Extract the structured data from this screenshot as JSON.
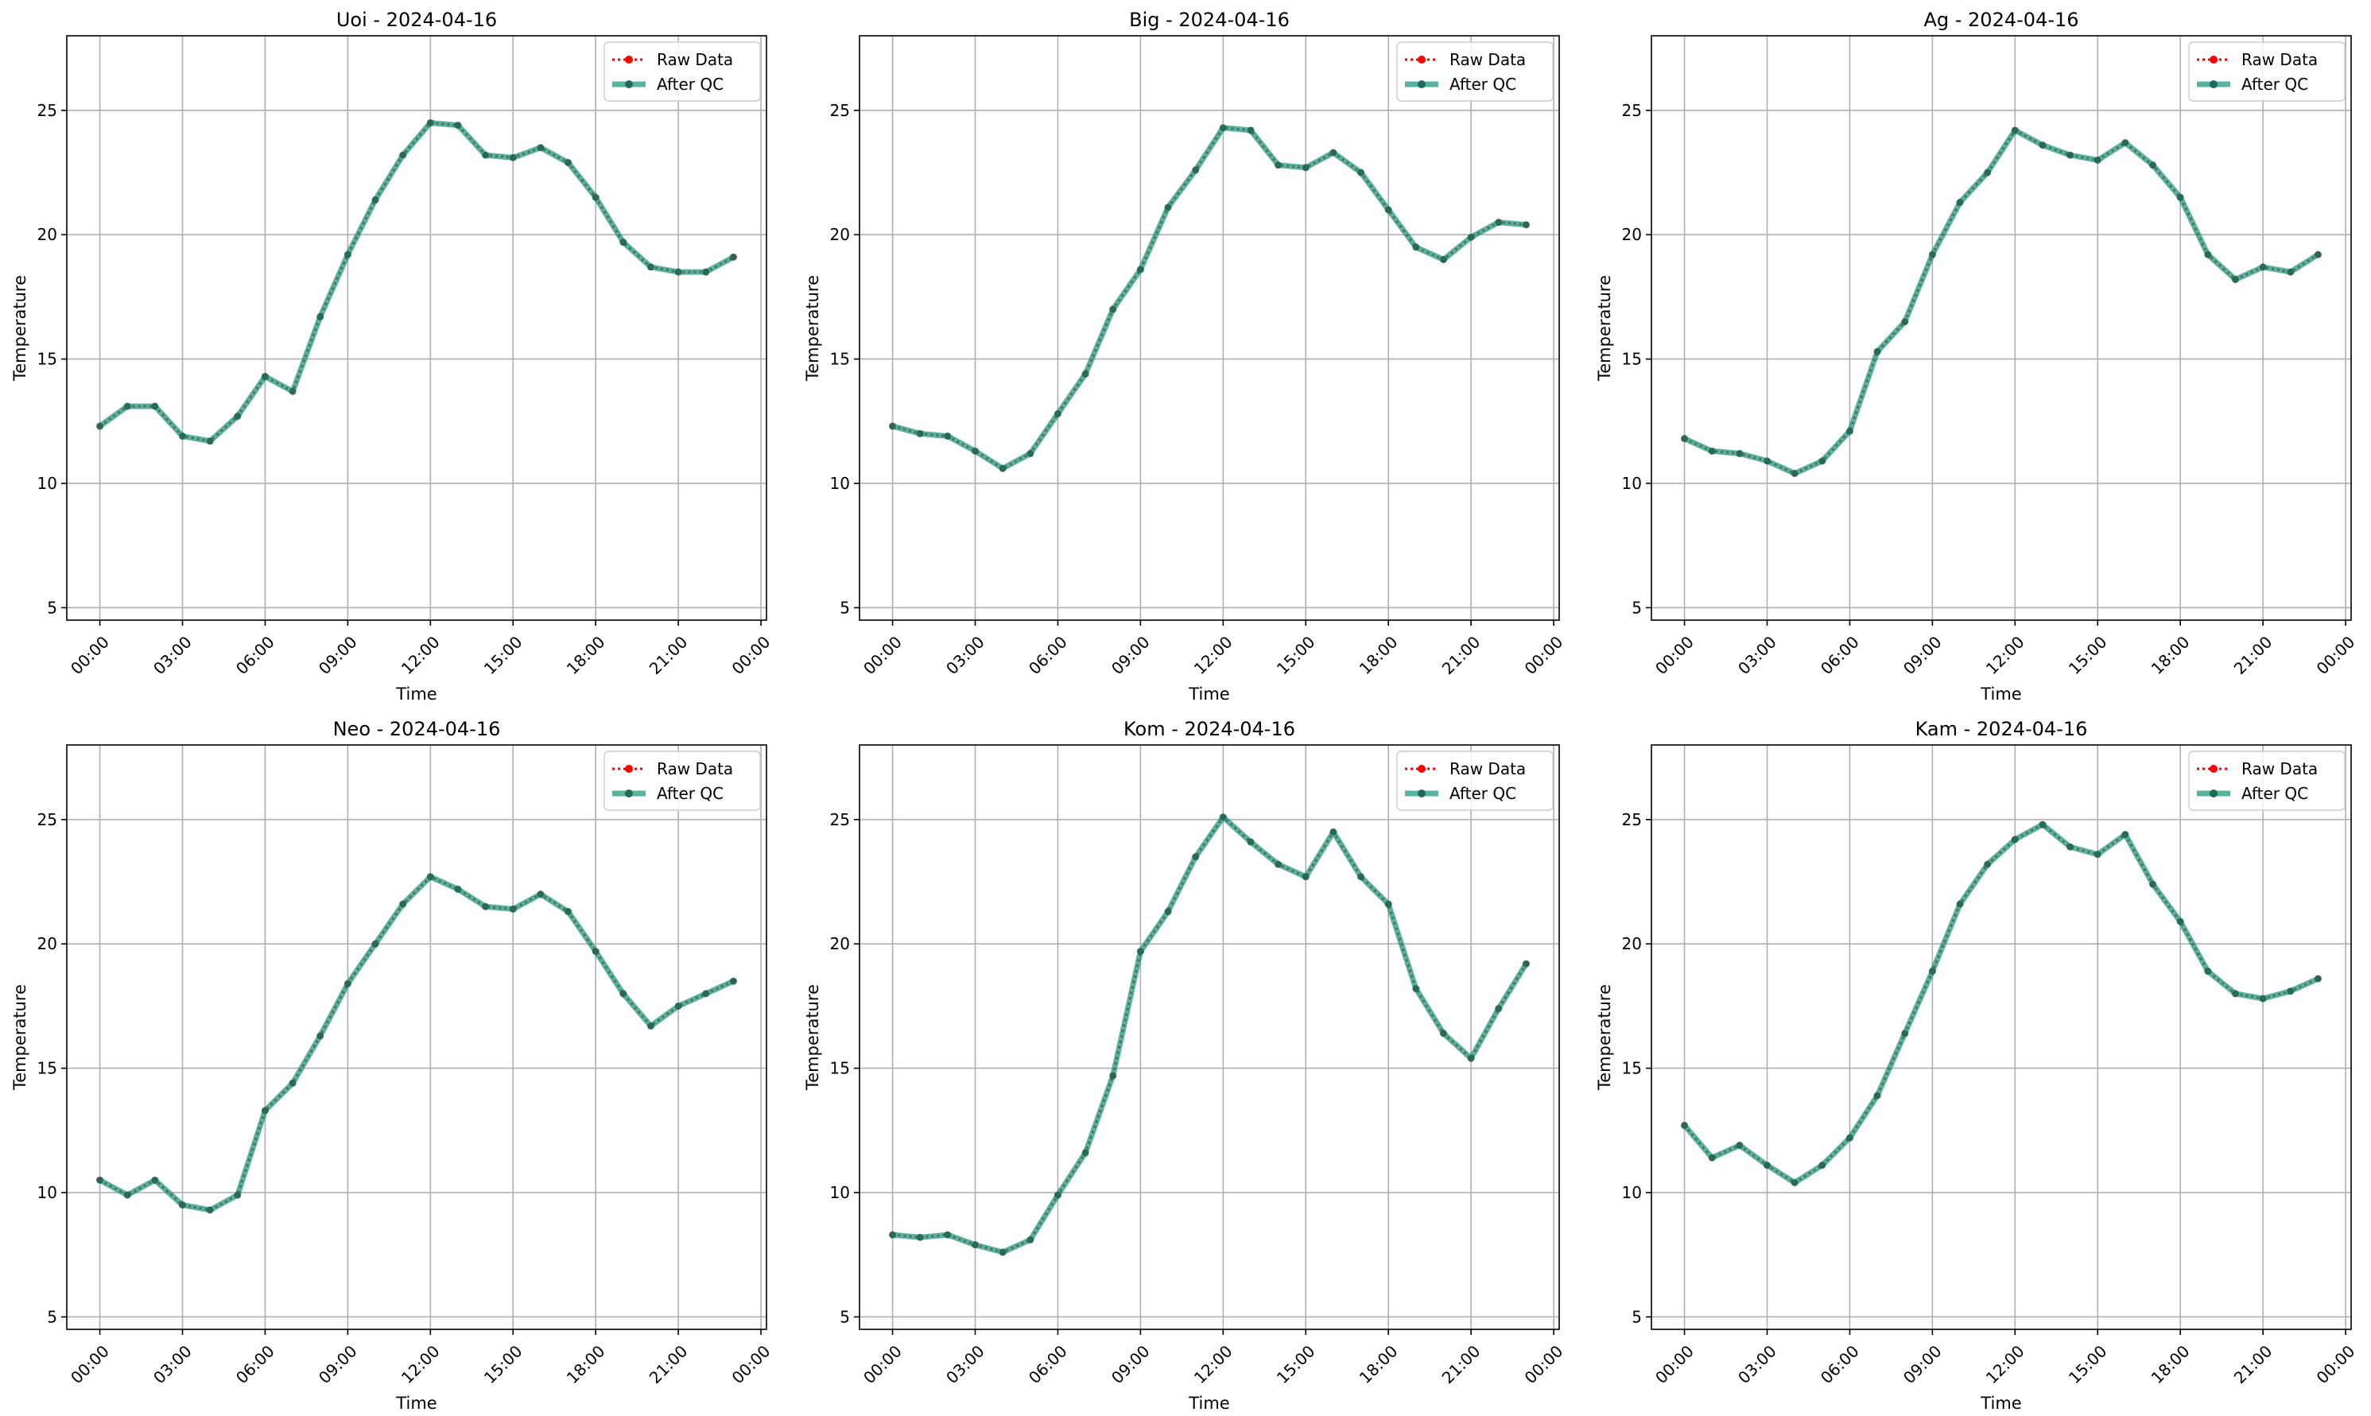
{
  "chart_data": [
    {
      "type": "line",
      "title": "Uoi - 2024-04-16",
      "xlabel": "Time",
      "ylabel": "Temperature",
      "x": [
        "00:00",
        "01:00",
        "02:00",
        "03:00",
        "04:00",
        "05:00",
        "06:00",
        "07:00",
        "08:00",
        "09:00",
        "10:00",
        "11:00",
        "12:00",
        "13:00",
        "14:00",
        "15:00",
        "16:00",
        "17:00",
        "18:00",
        "19:00",
        "20:00",
        "21:00",
        "22:00",
        "23:00"
      ],
      "xticks": [
        "00:00",
        "03:00",
        "06:00",
        "09:00",
        "12:00",
        "15:00",
        "18:00",
        "21:00",
        "00:00"
      ],
      "yticks": [
        5,
        10,
        15,
        20,
        25
      ],
      "ylim": [
        4.5,
        28
      ],
      "grid": true,
      "legend": "upper right",
      "series": [
        {
          "name": "Raw Data",
          "style": "dotted",
          "color": "#ff0000",
          "values": [
            12.3,
            13.1,
            13.1,
            11.9,
            11.7,
            12.7,
            14.3,
            13.7,
            16.7,
            19.2,
            21.4,
            23.2,
            24.5,
            24.4,
            23.2,
            23.1,
            23.5,
            22.9,
            21.5,
            19.7,
            18.7,
            18.5,
            18.5,
            19.1
          ]
        },
        {
          "name": "After QC",
          "style": "solid",
          "color": "#16967a",
          "values": [
            12.3,
            13.1,
            13.1,
            11.9,
            11.7,
            12.7,
            14.3,
            13.7,
            16.7,
            19.2,
            21.4,
            23.2,
            24.5,
            24.4,
            23.2,
            23.1,
            23.5,
            22.9,
            21.5,
            19.7,
            18.7,
            18.5,
            18.5,
            19.1
          ]
        }
      ]
    },
    {
      "type": "line",
      "title": "Big - 2024-04-16",
      "xlabel": "Time",
      "ylabel": "Temperature",
      "x": [
        "00:00",
        "01:00",
        "02:00",
        "03:00",
        "04:00",
        "05:00",
        "06:00",
        "07:00",
        "08:00",
        "09:00",
        "10:00",
        "11:00",
        "12:00",
        "13:00",
        "14:00",
        "15:00",
        "16:00",
        "17:00",
        "18:00",
        "19:00",
        "20:00",
        "21:00",
        "22:00",
        "23:00"
      ],
      "xticks": [
        "00:00",
        "03:00",
        "06:00",
        "09:00",
        "12:00",
        "15:00",
        "18:00",
        "21:00",
        "00:00"
      ],
      "yticks": [
        5,
        10,
        15,
        20,
        25
      ],
      "ylim": [
        4.5,
        28
      ],
      "grid": true,
      "legend": "upper right",
      "series": [
        {
          "name": "Raw Data",
          "style": "dotted",
          "color": "#ff0000",
          "values": [
            12.3,
            12.0,
            11.9,
            11.3,
            10.6,
            11.2,
            12.8,
            14.4,
            17.0,
            18.6,
            21.1,
            22.6,
            24.3,
            24.2,
            22.8,
            22.7,
            23.3,
            22.5,
            21.0,
            19.5,
            19.0,
            19.9,
            20.5,
            20.4
          ]
        },
        {
          "name": "After QC",
          "style": "solid",
          "color": "#16967a",
          "values": [
            12.3,
            12.0,
            11.9,
            11.3,
            10.6,
            11.2,
            12.8,
            14.4,
            17.0,
            18.6,
            21.1,
            22.6,
            24.3,
            24.2,
            22.8,
            22.7,
            23.3,
            22.5,
            21.0,
            19.5,
            19.0,
            19.9,
            20.5,
            20.4
          ]
        }
      ]
    },
    {
      "type": "line",
      "title": "Ag - 2024-04-16",
      "xlabel": "Time",
      "ylabel": "Temperature",
      "x": [
        "00:00",
        "01:00",
        "02:00",
        "03:00",
        "04:00",
        "05:00",
        "06:00",
        "07:00",
        "08:00",
        "09:00",
        "10:00",
        "11:00",
        "12:00",
        "13:00",
        "14:00",
        "15:00",
        "16:00",
        "17:00",
        "18:00",
        "19:00",
        "20:00",
        "21:00",
        "22:00",
        "23:00"
      ],
      "xticks": [
        "00:00",
        "03:00",
        "06:00",
        "09:00",
        "12:00",
        "15:00",
        "18:00",
        "21:00",
        "00:00"
      ],
      "yticks": [
        5,
        10,
        15,
        20,
        25
      ],
      "ylim": [
        4.5,
        28
      ],
      "grid": true,
      "legend": "upper right",
      "series": [
        {
          "name": "Raw Data",
          "style": "dotted",
          "color": "#ff0000",
          "values": [
            11.8,
            11.3,
            11.2,
            10.9,
            10.4,
            10.9,
            12.1,
            15.3,
            16.5,
            19.2,
            21.3,
            22.5,
            24.2,
            23.6,
            23.2,
            23.0,
            23.7,
            22.8,
            21.5,
            19.2,
            18.2,
            18.7,
            18.5,
            19.2
          ]
        },
        {
          "name": "After QC",
          "style": "solid",
          "color": "#16967a",
          "values": [
            11.8,
            11.3,
            11.2,
            10.9,
            10.4,
            10.9,
            12.1,
            15.3,
            16.5,
            19.2,
            21.3,
            22.5,
            24.2,
            23.6,
            23.2,
            23.0,
            23.7,
            22.8,
            21.5,
            19.2,
            18.2,
            18.7,
            18.5,
            19.2
          ]
        }
      ]
    },
    {
      "type": "line",
      "title": "Neo - 2024-04-16",
      "xlabel": "Time",
      "ylabel": "Temperature",
      "x": [
        "00:00",
        "01:00",
        "02:00",
        "03:00",
        "04:00",
        "05:00",
        "06:00",
        "07:00",
        "08:00",
        "09:00",
        "10:00",
        "11:00",
        "12:00",
        "13:00",
        "14:00",
        "15:00",
        "16:00",
        "17:00",
        "18:00",
        "19:00",
        "20:00",
        "21:00",
        "22:00",
        "23:00"
      ],
      "xticks": [
        "00:00",
        "03:00",
        "06:00",
        "09:00",
        "12:00",
        "15:00",
        "18:00",
        "21:00",
        "00:00"
      ],
      "yticks": [
        5,
        10,
        15,
        20,
        25
      ],
      "ylim": [
        4.5,
        28
      ],
      "grid": true,
      "legend": "upper right",
      "series": [
        {
          "name": "Raw Data",
          "style": "dotted",
          "color": "#ff0000",
          "values": [
            10.5,
            9.9,
            10.5,
            9.5,
            9.3,
            9.9,
            13.3,
            14.4,
            16.3,
            18.4,
            20.0,
            21.6,
            22.7,
            22.2,
            21.5,
            21.4,
            22.0,
            21.3,
            19.7,
            18.0,
            16.7,
            17.5,
            18.0,
            18.5
          ]
        },
        {
          "name": "After QC",
          "style": "solid",
          "color": "#16967a",
          "values": [
            10.5,
            9.9,
            10.5,
            9.5,
            9.3,
            9.9,
            13.3,
            14.4,
            16.3,
            18.4,
            20.0,
            21.6,
            22.7,
            22.2,
            21.5,
            21.4,
            22.0,
            21.3,
            19.7,
            18.0,
            16.7,
            17.5,
            18.0,
            18.5
          ]
        }
      ]
    },
    {
      "type": "line",
      "title": "Kom - 2024-04-16",
      "xlabel": "Time",
      "ylabel": "Temperature",
      "x": [
        "00:00",
        "01:00",
        "02:00",
        "03:00",
        "04:00",
        "05:00",
        "06:00",
        "07:00",
        "08:00",
        "09:00",
        "10:00",
        "11:00",
        "12:00",
        "13:00",
        "14:00",
        "15:00",
        "16:00",
        "17:00",
        "18:00",
        "19:00",
        "20:00",
        "21:00",
        "22:00",
        "23:00"
      ],
      "xticks": [
        "00:00",
        "03:00",
        "06:00",
        "09:00",
        "12:00",
        "15:00",
        "18:00",
        "21:00",
        "00:00"
      ],
      "yticks": [
        5,
        10,
        15,
        20,
        25
      ],
      "ylim": [
        4.5,
        28
      ],
      "grid": true,
      "legend": "upper right",
      "series": [
        {
          "name": "Raw Data",
          "style": "dotted",
          "color": "#ff0000",
          "values": [
            8.3,
            8.2,
            8.3,
            7.9,
            7.6,
            8.1,
            9.9,
            11.6,
            14.7,
            19.7,
            21.3,
            23.5,
            25.1,
            24.1,
            23.2,
            22.7,
            24.5,
            22.7,
            21.6,
            18.2,
            16.4,
            15.4,
            17.4,
            19.2
          ]
        },
        {
          "name": "After QC",
          "style": "solid",
          "color": "#16967a",
          "values": [
            8.3,
            8.2,
            8.3,
            7.9,
            7.6,
            8.1,
            9.9,
            11.6,
            14.7,
            19.7,
            21.3,
            23.5,
            25.1,
            24.1,
            23.2,
            22.7,
            24.5,
            22.7,
            21.6,
            18.2,
            16.4,
            15.4,
            17.4,
            19.2
          ]
        }
      ]
    },
    {
      "type": "line",
      "title": "Kam - 2024-04-16",
      "xlabel": "Time",
      "ylabel": "Temperature",
      "x": [
        "00:00",
        "01:00",
        "02:00",
        "03:00",
        "04:00",
        "05:00",
        "06:00",
        "07:00",
        "08:00",
        "09:00",
        "10:00",
        "11:00",
        "12:00",
        "13:00",
        "14:00",
        "15:00",
        "16:00",
        "17:00",
        "18:00",
        "19:00",
        "20:00",
        "21:00",
        "22:00",
        "23:00"
      ],
      "xticks": [
        "00:00",
        "03:00",
        "06:00",
        "09:00",
        "12:00",
        "15:00",
        "18:00",
        "21:00",
        "00:00"
      ],
      "yticks": [
        5,
        10,
        15,
        20,
        25
      ],
      "ylim": [
        4.5,
        28
      ],
      "grid": true,
      "legend": "upper right",
      "series": [
        {
          "name": "Raw Data",
          "style": "dotted",
          "color": "#ff0000",
          "values": [
            12.7,
            11.4,
            11.9,
            11.1,
            10.4,
            11.1,
            12.2,
            13.9,
            16.4,
            18.9,
            21.6,
            23.2,
            24.2,
            24.8,
            23.9,
            23.6,
            24.4,
            22.4,
            20.9,
            18.9,
            18.0,
            17.8,
            18.1,
            18.6
          ]
        },
        {
          "name": "After QC",
          "style": "solid",
          "color": "#16967a",
          "values": [
            12.7,
            11.4,
            11.9,
            11.1,
            10.4,
            11.1,
            12.2,
            13.9,
            16.4,
            18.9,
            21.6,
            23.2,
            24.2,
            24.8,
            23.9,
            23.6,
            24.4,
            22.4,
            20.9,
            18.9,
            18.0,
            17.8,
            18.1,
            18.6
          ]
        }
      ]
    }
  ]
}
